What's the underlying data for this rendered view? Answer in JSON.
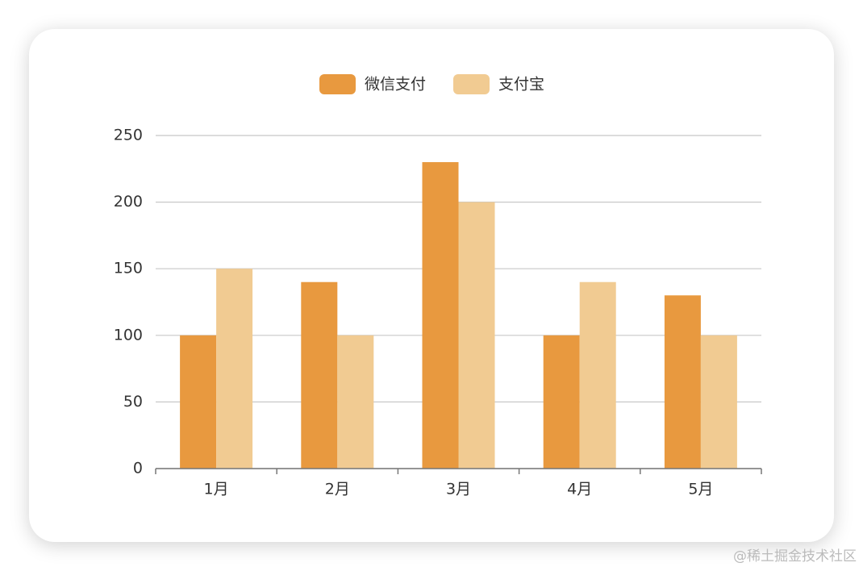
{
  "chart_data": {
    "type": "bar",
    "categories": [
      "1月",
      "2月",
      "3月",
      "4月",
      "5月"
    ],
    "series": [
      {
        "name": "微信支付",
        "color": "#e8993f",
        "values": [
          100,
          140,
          230,
          100,
          130
        ]
      },
      {
        "name": "支付宝",
        "color": "#f1cb92",
        "values": [
          150,
          100,
          200,
          140,
          100
        ]
      }
    ],
    "ylim": [
      0,
      250
    ],
    "yticks": [
      0,
      50,
      100,
      150,
      200,
      250
    ],
    "grid": true,
    "legend": "top"
  },
  "watermark": "@稀土掘金技术社区"
}
